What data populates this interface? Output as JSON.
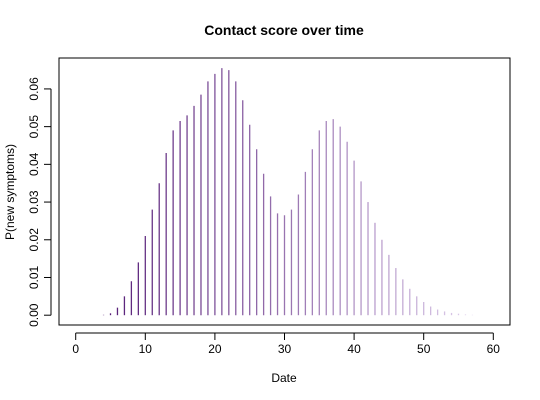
{
  "chart_data": {
    "type": "bar",
    "title": "Contact score over time",
    "xlabel": "Date",
    "ylabel": "P(new symptoms)",
    "xlim": [
      -2.4,
      62.4
    ],
    "ylim": [
      -0.0026,
      0.0682
    ],
    "x_ticks": [
      0,
      10,
      20,
      30,
      40,
      50,
      60
    ],
    "x_tick_labels": [
      "0",
      "10",
      "20",
      "30",
      "40",
      "50",
      "60"
    ],
    "y_ticks": [
      0,
      0.01,
      0.02,
      0.03,
      0.04,
      0.05,
      0.06
    ],
    "y_tick_labels": [
      "0.00",
      "0.01",
      "0.02",
      "0.03",
      "0.04",
      "0.05",
      "0.06"
    ],
    "grid": false,
    "legend": "none",
    "color_start": "#4b0f6e",
    "color_end": "#e6d8f2",
    "x": [
      0,
      1,
      2,
      3,
      4,
      5,
      6,
      7,
      8,
      9,
      10,
      11,
      12,
      13,
      14,
      15,
      16,
      17,
      18,
      19,
      20,
      21,
      22,
      23,
      24,
      25,
      26,
      27,
      28,
      29,
      30,
      31,
      32,
      33,
      34,
      35,
      36,
      37,
      38,
      39,
      40,
      41,
      42,
      43,
      44,
      45,
      46,
      47,
      48,
      49,
      50,
      51,
      52,
      53,
      54,
      55,
      56,
      57,
      58,
      59,
      60
    ],
    "values": [
      0.0,
      0.0,
      0.0,
      0.0,
      0.0001,
      0.0005,
      0.002,
      0.005,
      0.009,
      0.014,
      0.021,
      0.028,
      0.035,
      0.043,
      0.049,
      0.0515,
      0.053,
      0.0555,
      0.0585,
      0.062,
      0.064,
      0.0655,
      0.065,
      0.062,
      0.057,
      0.0505,
      0.044,
      0.0375,
      0.0315,
      0.027,
      0.0265,
      0.028,
      0.032,
      0.038,
      0.044,
      0.049,
      0.0515,
      0.052,
      0.05,
      0.046,
      0.041,
      0.0355,
      0.03,
      0.0245,
      0.02,
      0.016,
      0.0125,
      0.0095,
      0.007,
      0.005,
      0.0035,
      0.0023,
      0.0015,
      0.001,
      0.0006,
      0.0004,
      0.0002,
      0.0001,
      0.0,
      0.0,
      0.0
    ]
  }
}
